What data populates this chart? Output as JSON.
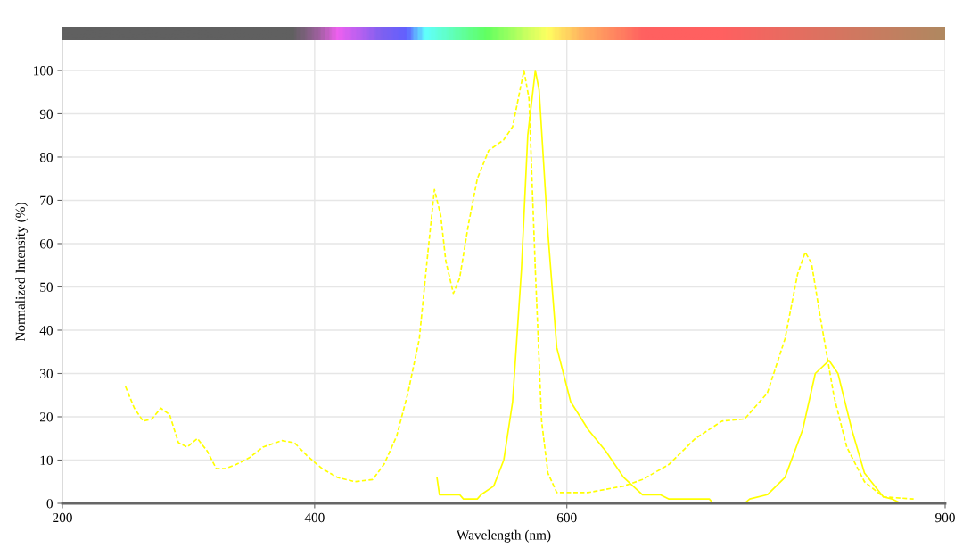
{
  "chart_data": {
    "type": "line",
    "xlabel": "Wavelength (nm)",
    "ylabel": "Normalized Intensity (%)",
    "xlim": [
      200,
      900
    ],
    "xticks": [
      200,
      400,
      600,
      900
    ],
    "ylim": [
      0,
      107
    ],
    "yticks": [
      0,
      10,
      20,
      30,
      40,
      50,
      60,
      70,
      80,
      90,
      100
    ],
    "grid": true,
    "marker": "none",
    "series": [
      {
        "color": "#ffff00",
        "line_style": "dashed",
        "x": [
          250,
          257,
          264,
          271,
          278,
          285,
          292,
          299,
          307,
          315,
          322,
          329,
          338,
          348,
          359,
          374,
          384,
          394,
          406,
          418,
          432,
          446,
          455,
          465,
          474,
          483,
          490,
          495,
          500,
          504,
          510,
          515,
          522,
          529,
          538,
          550,
          557,
          566,
          570,
          575,
          580,
          585,
          592,
          617,
          645,
          660,
          681,
          702,
          723,
          741,
          759,
          773,
          783,
          789,
          794,
          801,
          812,
          822,
          836,
          851,
          875
        ],
        "values": [
          27,
          22,
          19,
          19.5,
          22,
          20.5,
          14,
          13,
          15,
          12,
          8,
          8,
          9,
          10.5,
          13,
          14.5,
          14,
          11,
          8,
          6,
          5,
          5.5,
          9,
          15.5,
          25.5,
          38,
          58.5,
          72.5,
          66.5,
          56,
          48.5,
          52,
          64.5,
          75,
          81.5,
          84,
          87,
          100,
          93.5,
          54,
          19,
          7,
          2.5,
          2.5,
          4,
          5.5,
          9,
          15,
          19,
          19.5,
          25.5,
          38,
          53,
          58,
          55.5,
          43,
          24.5,
          13,
          5,
          1.5,
          1
        ]
      },
      {
        "color": "#ffff00",
        "line_style": "solid",
        "x": [
          497,
          499,
          515,
          518,
          529,
          532,
          542,
          550,
          557,
          564,
          569,
          575,
          578,
          585,
          592,
          603,
          617,
          631,
          645,
          660,
          674,
          681,
          713,
          716,
          741,
          745,
          759,
          773,
          787,
          797,
          808,
          815,
          826,
          836,
          851,
          858,
          865,
          900
        ],
        "values": [
          6,
          2,
          2,
          1,
          1,
          2,
          4,
          10,
          23.5,
          54,
          85,
          100,
          95.5,
          62.5,
          36,
          23.5,
          17,
          12,
          6,
          2,
          2,
          1,
          1,
          0,
          0,
          1,
          2,
          6,
          17,
          30,
          33,
          30,
          17,
          7,
          1.5,
          1,
          0,
          0
        ]
      }
    ]
  }
}
